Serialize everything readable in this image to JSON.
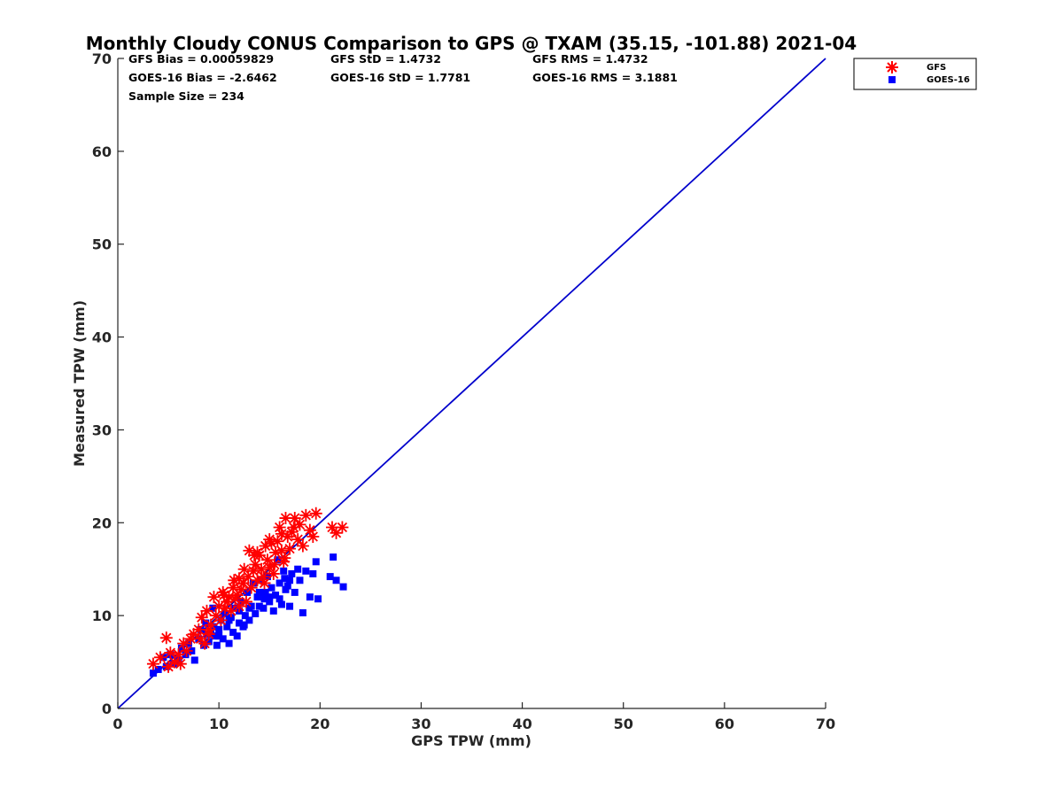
{
  "chart_data": {
    "type": "scatter",
    "title": "Monthly Cloudy CONUS Comparison to GPS @ TXAM (35.15, -101.88) 2021-04",
    "xlabel": "GPS TPW (mm)",
    "ylabel": "Measured TPW (mm)",
    "xlim": [
      0,
      70
    ],
    "ylim": [
      0,
      70
    ],
    "xticks": [
      "0",
      "10",
      "20",
      "30",
      "40",
      "50",
      "60",
      "70"
    ],
    "yticks": [
      "0",
      "10",
      "20",
      "30",
      "40",
      "50",
      "60",
      "70"
    ],
    "grid": false,
    "legend_position": "top-right",
    "stats": {
      "gfs_bias": "GFS Bias = 0.00059829",
      "gfs_std": "GFS StD = 1.4732",
      "gfs_rms": "GFS RMS = 1.4732",
      "goes_bias": "GOES-16 Bias = -2.6462",
      "goes_std": "GOES-16 StD = 1.7781",
      "goes_rms": "GOES-16 RMS = 3.1881",
      "sample_size": "Sample Size = 234"
    },
    "reference_line": {
      "x": [
        0,
        70
      ],
      "y": [
        0,
        70
      ],
      "color": "#0000cc"
    },
    "series": [
      {
        "name": "GFS",
        "marker": "asterisk",
        "color": "#ff0000",
        "points": [
          [
            3.5,
            4.8
          ],
          [
            4.2,
            5.5
          ],
          [
            4.8,
            7.6
          ],
          [
            5.2,
            6.0
          ],
          [
            5.6,
            5.0
          ],
          [
            6.0,
            5.8
          ],
          [
            6.5,
            7.0
          ],
          [
            6.8,
            6.2
          ],
          [
            7.2,
            7.5
          ],
          [
            7.5,
            8.0
          ],
          [
            8.0,
            8.5
          ],
          [
            8.3,
            9.8
          ],
          [
            8.6,
            7.0
          ],
          [
            8.8,
            10.5
          ],
          [
            9.0,
            8.0
          ],
          [
            9.2,
            9.0
          ],
          [
            9.5,
            12.0
          ],
          [
            9.7,
            10.0
          ],
          [
            10.0,
            11.0
          ],
          [
            10.2,
            9.5
          ],
          [
            10.4,
            12.5
          ],
          [
            10.6,
            10.8
          ],
          [
            10.8,
            11.5
          ],
          [
            11.0,
            12.0
          ],
          [
            11.2,
            10.5
          ],
          [
            11.4,
            13.0
          ],
          [
            11.6,
            11.8
          ],
          [
            11.8,
            12.2
          ],
          [
            12.0,
            14.0
          ],
          [
            12.2,
            12.8
          ],
          [
            12.4,
            13.5
          ],
          [
            12.5,
            15.0
          ],
          [
            12.7,
            11.5
          ],
          [
            12.9,
            14.2
          ],
          [
            13.0,
            17.0
          ],
          [
            13.2,
            13.0
          ],
          [
            13.4,
            14.8
          ],
          [
            13.6,
            15.5
          ],
          [
            13.8,
            13.8
          ],
          [
            14.0,
            16.5
          ],
          [
            14.2,
            15.0
          ],
          [
            14.4,
            14.2
          ],
          [
            14.6,
            17.5
          ],
          [
            14.8,
            16.0
          ],
          [
            15.0,
            15.2
          ],
          [
            15.2,
            17.8
          ],
          [
            15.4,
            14.5
          ],
          [
            15.6,
            16.8
          ],
          [
            15.8,
            18.0
          ],
          [
            16.0,
            19.5
          ],
          [
            16.2,
            17.0
          ],
          [
            16.4,
            15.8
          ],
          [
            16.6,
            20.5
          ],
          [
            16.8,
            18.5
          ],
          [
            17.0,
            17.2
          ],
          [
            17.2,
            19.0
          ],
          [
            17.5,
            20.5
          ],
          [
            17.8,
            18.2
          ],
          [
            18.0,
            19.8
          ],
          [
            18.3,
            17.5
          ],
          [
            18.6,
            20.8
          ],
          [
            19.0,
            19.2
          ],
          [
            19.3,
            18.5
          ],
          [
            19.6,
            21.0
          ],
          [
            13.5,
            16.5
          ],
          [
            14.5,
            13.5
          ],
          [
            15.5,
            15.5
          ],
          [
            16.5,
            16.2
          ],
          [
            12.0,
            11.0
          ],
          [
            11.5,
            13.8
          ],
          [
            10.5,
            12.2
          ],
          [
            13.8,
            16.8
          ],
          [
            15.0,
            18.2
          ],
          [
            16.2,
            18.8
          ],
          [
            17.4,
            19.5
          ],
          [
            21.2,
            19.5
          ],
          [
            21.6,
            18.9
          ],
          [
            22.2,
            19.5
          ],
          [
            9.0,
            8.5
          ],
          [
            8.2,
            7.5
          ],
          [
            6.2,
            4.8
          ],
          [
            5.0,
            4.5
          ]
        ]
      },
      {
        "name": "GOES-16",
        "marker": "square",
        "color": "#0000ff",
        "points": [
          [
            3.5,
            3.8
          ],
          [
            4.0,
            4.2
          ],
          [
            4.5,
            5.5
          ],
          [
            4.8,
            4.5
          ],
          [
            5.2,
            5.8
          ],
          [
            5.5,
            4.8
          ],
          [
            6.0,
            5.2
          ],
          [
            6.3,
            6.5
          ],
          [
            6.7,
            5.8
          ],
          [
            7.0,
            7.0
          ],
          [
            7.3,
            6.2
          ],
          [
            7.6,
            5.2
          ],
          [
            8.0,
            7.5
          ],
          [
            8.2,
            8.5
          ],
          [
            8.5,
            6.8
          ],
          [
            8.7,
            9.2
          ],
          [
            9.0,
            7.2
          ],
          [
            9.2,
            8.0
          ],
          [
            9.4,
            10.8
          ],
          [
            9.6,
            7.8
          ],
          [
            9.8,
            6.8
          ],
          [
            10.0,
            8.5
          ],
          [
            10.2,
            9.5
          ],
          [
            10.4,
            7.5
          ],
          [
            10.6,
            10.2
          ],
          [
            10.8,
            8.8
          ],
          [
            11.0,
            7.0
          ],
          [
            11.2,
            9.8
          ],
          [
            11.4,
            8.2
          ],
          [
            11.6,
            10.8
          ],
          [
            11.8,
            7.8
          ],
          [
            12.0,
            9.2
          ],
          [
            12.2,
            11.5
          ],
          [
            12.4,
            8.8
          ],
          [
            12.6,
            10.0
          ],
          [
            12.8,
            12.5
          ],
          [
            13.0,
            9.5
          ],
          [
            13.2,
            11.0
          ],
          [
            13.4,
            13.5
          ],
          [
            13.6,
            10.2
          ],
          [
            13.8,
            12.0
          ],
          [
            14.0,
            11.0
          ],
          [
            14.2,
            13.8
          ],
          [
            14.4,
            10.8
          ],
          [
            14.6,
            12.5
          ],
          [
            14.8,
            14.2
          ],
          [
            15.0,
            11.5
          ],
          [
            15.2,
            13.0
          ],
          [
            15.4,
            10.5
          ],
          [
            15.6,
            12.2
          ],
          [
            15.8,
            16.0
          ],
          [
            16.0,
            13.5
          ],
          [
            16.2,
            11.2
          ],
          [
            16.4,
            14.8
          ],
          [
            16.6,
            12.8
          ],
          [
            16.8,
            13.2
          ],
          [
            17.0,
            11.0
          ],
          [
            17.2,
            14.5
          ],
          [
            17.5,
            12.5
          ],
          [
            17.8,
            15.0
          ],
          [
            18.0,
            13.8
          ],
          [
            18.3,
            10.3
          ],
          [
            18.6,
            14.8
          ],
          [
            19.0,
            12.0
          ],
          [
            19.3,
            14.5
          ],
          [
            19.6,
            15.8
          ],
          [
            19.8,
            11.8
          ],
          [
            21.3,
            16.3
          ],
          [
            21.0,
            14.2
          ],
          [
            21.6,
            13.8
          ],
          [
            22.3,
            13.1
          ],
          [
            12.5,
            9.0
          ],
          [
            14.0,
            12.5
          ],
          [
            15.0,
            12.0
          ],
          [
            16.0,
            11.8
          ],
          [
            11.0,
            9.5
          ],
          [
            10.0,
            7.8
          ],
          [
            13.0,
            10.8
          ],
          [
            17.0,
            13.8
          ],
          [
            9.5,
            8.8
          ],
          [
            8.8,
            8.0
          ],
          [
            12.0,
            10.5
          ],
          [
            14.5,
            11.8
          ],
          [
            16.5,
            14.0
          ]
        ]
      }
    ]
  }
}
